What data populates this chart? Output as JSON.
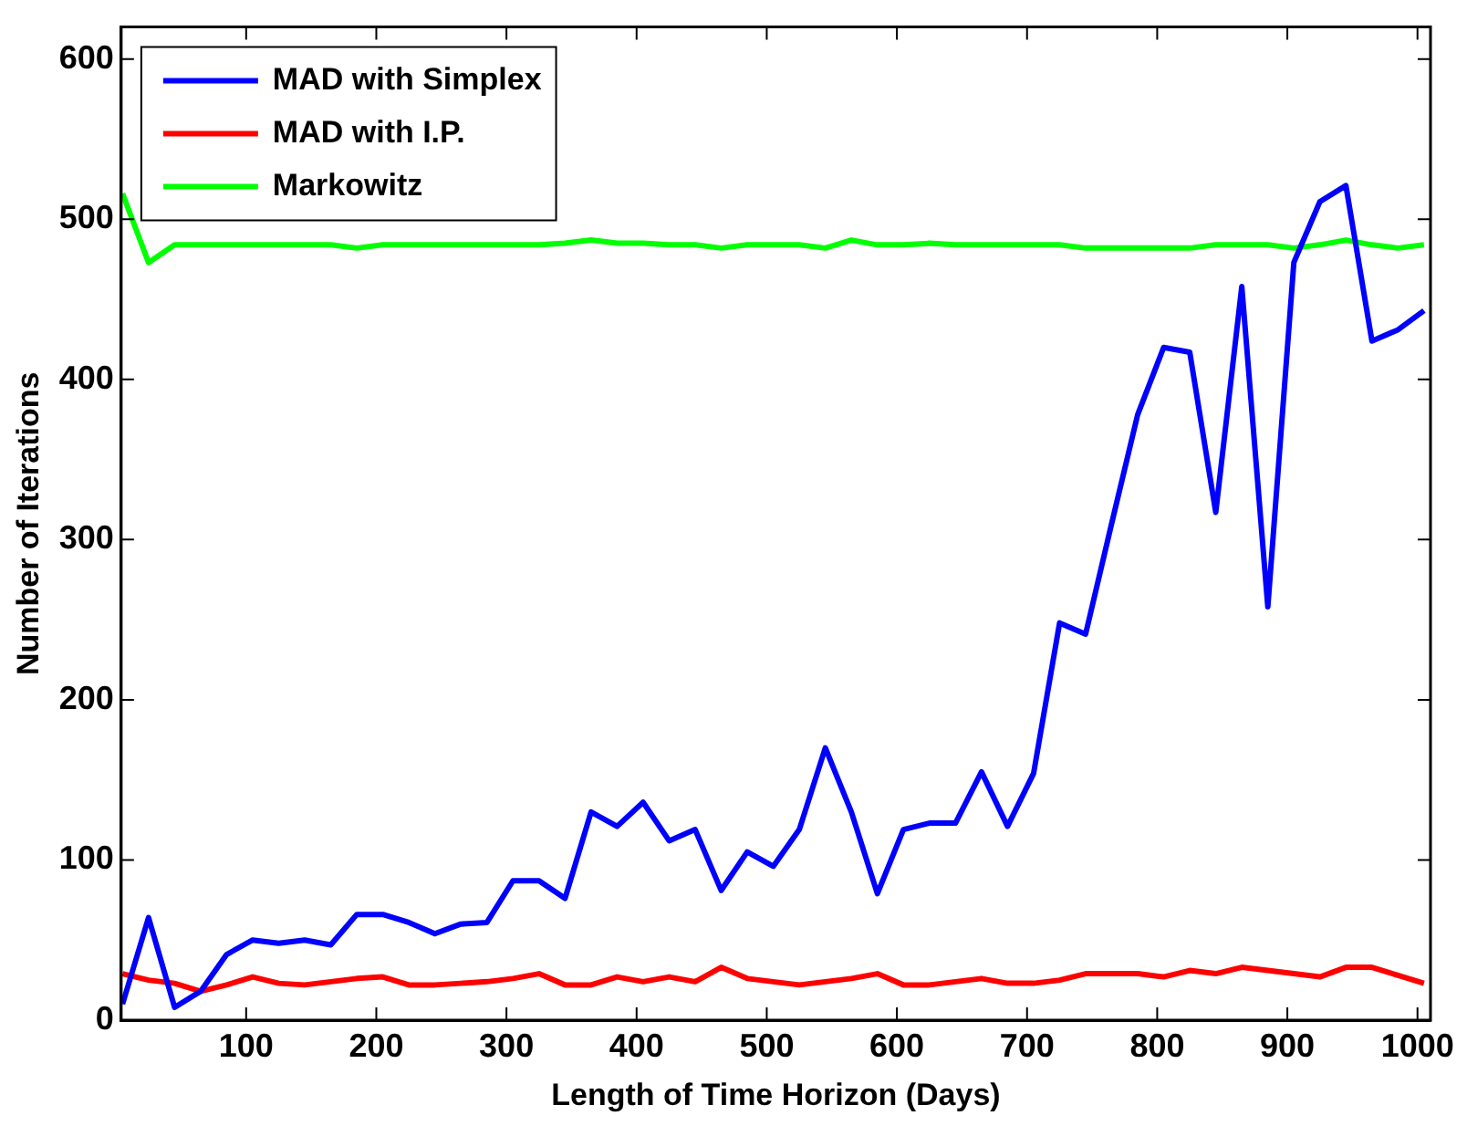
{
  "chart_data": {
    "type": "line",
    "xlabel": "Length of Time Horizon (Days)",
    "ylabel": "Number of Iterations",
    "x": [
      5,
      25,
      45,
      65,
      85,
      105,
      125,
      145,
      165,
      185,
      205,
      225,
      245,
      265,
      285,
      305,
      325,
      345,
      365,
      385,
      405,
      425,
      445,
      465,
      485,
      505,
      525,
      545,
      565,
      585,
      605,
      625,
      645,
      665,
      685,
      705,
      725,
      745,
      765,
      785,
      805,
      825,
      845,
      865,
      885,
      905,
      925,
      945,
      965,
      985,
      1005
    ],
    "series": [
      {
        "name": "MAD with Simplex",
        "color": "#0000ff",
        "values": [
          10,
          64,
          8,
          18,
          41,
          50,
          48,
          50,
          47,
          66,
          66,
          61,
          54,
          60,
          61,
          87,
          87,
          76,
          130,
          121,
          136,
          112,
          119,
          81,
          105,
          96,
          119,
          170,
          130,
          79,
          119,
          123,
          123,
          155,
          121,
          154,
          248,
          241,
          310,
          378,
          420,
          417,
          317,
          458,
          258,
          473,
          511,
          521,
          424,
          431,
          443
        ]
      },
      {
        "name": "MAD with I.P.",
        "color": "#ff0000",
        "values": [
          29,
          25,
          23,
          18,
          22,
          27,
          23,
          22,
          24,
          26,
          27,
          22,
          22,
          23,
          24,
          26,
          29,
          22,
          22,
          27,
          24,
          27,
          24,
          33,
          26,
          24,
          22,
          24,
          26,
          29,
          22,
          22,
          24,
          26,
          23,
          23,
          25,
          29,
          29,
          29,
          27,
          31,
          29,
          33,
          31,
          29,
          27,
          33,
          33,
          28,
          23
        ]
      },
      {
        "name": "Markowitz",
        "color": "#00ff00",
        "values": [
          516,
          473,
          484,
          484,
          484,
          484,
          484,
          484,
          484,
          482,
          484,
          484,
          484,
          484,
          484,
          484,
          484,
          485,
          487,
          485,
          485,
          484,
          484,
          482,
          484,
          484,
          484,
          482,
          487,
          484,
          484,
          485,
          484,
          484,
          484,
          484,
          484,
          482,
          482,
          482,
          482,
          482,
          484,
          484,
          484,
          482,
          484,
          487,
          484,
          482,
          484
        ]
      }
    ],
    "xlim": [
      4,
      1010
    ],
    "xticks": [
      100,
      200,
      300,
      400,
      500,
      600,
      700,
      800,
      900,
      1000
    ],
    "ylim": [
      0,
      620
    ],
    "yticks": [
      0,
      100,
      200,
      300,
      400,
      500,
      600
    ],
    "grid": false,
    "legend": "top left",
    "line_style": "solid",
    "marker": "none"
  }
}
